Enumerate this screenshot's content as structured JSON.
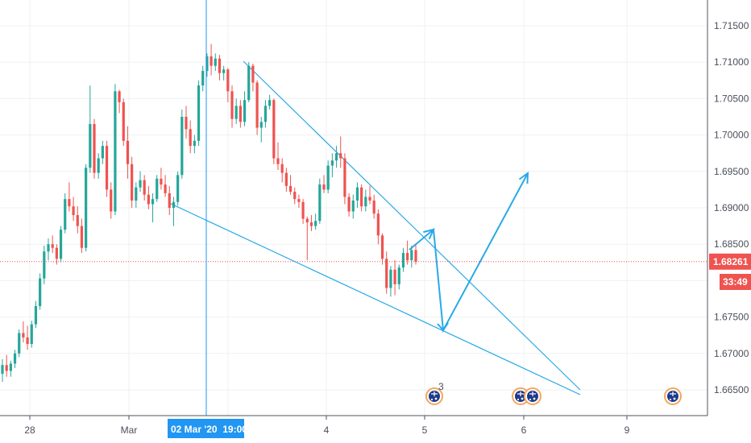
{
  "chart_data": {
    "type": "candlestick",
    "grid": true,
    "y_axis": {
      "position": "right",
      "ticks": [
        "1.71500",
        "1.71000",
        "1.70500",
        "1.70000",
        "1.69500",
        "1.69000",
        "1.68500",
        "1.67500",
        "1.67000",
        "1.66500"
      ],
      "ylim": [
        1.662,
        1.718
      ]
    },
    "x_axis": {
      "ticks": [
        "28",
        "Mar",
        "4",
        "5",
        "6",
        "9"
      ]
    },
    "current_price": {
      "value": 1.68261,
      "label": "1.68261",
      "countdown": "33:49",
      "color": "#ef5350"
    },
    "crosshair": {
      "label": "02 Mar '20  19:00",
      "color": "#2196f3"
    },
    "colors": {
      "up": "#26a69a",
      "down": "#ef5350",
      "drawing": "#29a9e8",
      "grid": "#eef0f3"
    },
    "candles": [
      [
        1.6672,
        1.6692,
        1.6661,
        1.6684
      ],
      [
        1.6684,
        1.6698,
        1.6668,
        1.6676
      ],
      [
        1.6676,
        1.669,
        1.6668,
        1.6686
      ],
      [
        1.6686,
        1.6705,
        1.668,
        1.67
      ],
      [
        1.67,
        1.6733,
        1.6695,
        1.6728
      ],
      [
        1.6728,
        1.6744,
        1.6715,
        1.6722
      ],
      [
        1.6722,
        1.6738,
        1.6705,
        1.6713
      ],
      [
        1.6713,
        1.6745,
        1.6708,
        1.674
      ],
      [
        1.674,
        1.6772,
        1.6735,
        1.6765
      ],
      [
        1.6765,
        1.681,
        1.676,
        1.6803
      ],
      [
        1.6803,
        1.6848,
        1.6795,
        1.684
      ],
      [
        1.684,
        1.6858,
        1.6828,
        1.685
      ],
      [
        1.685,
        1.6862,
        1.6838,
        1.6845
      ],
      [
        1.6845,
        1.685,
        1.6822,
        1.683
      ],
      [
        1.683,
        1.6875,
        1.6825,
        1.687
      ],
      [
        1.687,
        1.692,
        1.6865,
        1.6912
      ],
      [
        1.6912,
        1.6935,
        1.6895,
        1.6902
      ],
      [
        1.6902,
        1.6915,
        1.6882,
        1.689
      ],
      [
        1.689,
        1.6902,
        1.6865,
        1.6875
      ],
      [
        1.6875,
        1.6885,
        1.6838,
        1.6845
      ],
      [
        1.6845,
        1.696,
        1.684,
        1.6955
      ],
      [
        1.6955,
        1.7068,
        1.6948,
        1.7015
      ],
      [
        1.7015,
        1.7022,
        1.694,
        1.6948
      ],
      [
        1.6948,
        1.6975,
        1.694,
        1.6968
      ],
      [
        1.6968,
        1.6992,
        1.696,
        1.6985
      ],
      [
        1.6985,
        1.6992,
        1.6915,
        1.6925
      ],
      [
        1.6925,
        1.6935,
        1.6885,
        1.6895
      ],
      [
        1.6895,
        1.707,
        1.689,
        1.706
      ],
      [
        1.706,
        1.7062,
        1.703,
        1.7045
      ],
      [
        1.7045,
        1.705,
        1.6985,
        1.6992
      ],
      [
        1.6992,
        1.7012,
        1.694,
        1.696
      ],
      [
        1.696,
        1.697,
        1.69,
        1.691
      ],
      [
        1.691,
        1.6935,
        1.69,
        1.6928
      ],
      [
        1.6928,
        1.695,
        1.6922,
        1.6938
      ],
      [
        1.6938,
        1.6945,
        1.691,
        1.6918
      ],
      [
        1.6918,
        1.693,
        1.6898,
        1.6905
      ],
      [
        1.6905,
        1.692,
        1.688,
        1.6912
      ],
      [
        1.6912,
        1.6945,
        1.6908,
        1.694
      ],
      [
        1.694,
        1.6955,
        1.6925,
        1.6932
      ],
      [
        1.6932,
        1.6945,
        1.6915,
        1.692
      ],
      [
        1.692,
        1.693,
        1.689,
        1.69
      ],
      [
        1.69,
        1.6915,
        1.6875,
        1.6908
      ],
      [
        1.6908,
        1.695,
        1.6903,
        1.6945
      ],
      [
        1.6945,
        1.7035,
        1.694,
        1.7025
      ],
      [
        1.7025,
        1.704,
        1.6995,
        1.7008
      ],
      [
        1.7008,
        1.702,
        1.6975,
        1.6985
      ],
      [
        1.6985,
        1.7,
        1.6975,
        1.6992
      ],
      [
        1.6992,
        1.7075,
        1.6985,
        1.7068
      ],
      [
        1.7068,
        1.7095,
        1.706,
        1.7088
      ],
      [
        1.7088,
        1.7112,
        1.708,
        1.7108
      ],
      [
        1.7108,
        1.7125,
        1.7082,
        1.7095
      ],
      [
        1.7095,
        1.7112,
        1.7088,
        1.7105
      ],
      [
        1.7105,
        1.711,
        1.7075,
        1.7085
      ],
      [
        1.7085,
        1.7095,
        1.7075,
        1.709
      ],
      [
        1.709,
        1.7092,
        1.7045,
        1.706
      ],
      [
        1.706,
        1.7068,
        1.701,
        1.7022
      ],
      [
        1.7022,
        1.705,
        1.7015,
        1.704
      ],
      [
        1.704,
        1.7048,
        1.701,
        1.7018
      ],
      [
        1.7018,
        1.706,
        1.7012,
        1.7048
      ],
      [
        1.7048,
        1.71,
        1.7045,
        1.7095
      ],
      [
        1.7095,
        1.7098,
        1.706,
        1.7072
      ],
      [
        1.7072,
        1.7075,
        1.7,
        1.701
      ],
      [
        1.701,
        1.7025,
        1.699,
        1.7018
      ],
      [
        1.7018,
        1.7048,
        1.701,
        1.704
      ],
      [
        1.704,
        1.7055,
        1.7035,
        1.7048
      ],
      [
        1.7048,
        1.705,
        1.696,
        1.6968
      ],
      [
        1.6968,
        1.699,
        1.6952,
        1.696
      ],
      [
        1.696,
        1.6968,
        1.6935,
        1.6948
      ],
      [
        1.6948,
        1.6955,
        1.6922,
        1.693
      ],
      [
        1.693,
        1.6945,
        1.6918,
        1.6922
      ],
      [
        1.6922,
        1.6928,
        1.6905,
        1.6912
      ],
      [
        1.6912,
        1.6918,
        1.69,
        1.6908
      ],
      [
        1.6908,
        1.6912,
        1.6878,
        1.6885
      ],
      [
        1.6885,
        1.6888,
        1.6828,
        1.688
      ],
      [
        1.688,
        1.689,
        1.6868,
        1.6875
      ],
      [
        1.6875,
        1.6892,
        1.687,
        1.6882
      ],
      [
        1.6882,
        1.694,
        1.6878,
        1.6932
      ],
      [
        1.6932,
        1.6945,
        1.692,
        1.6925
      ],
      [
        1.6925,
        1.6965,
        1.692,
        1.6958
      ],
      [
        1.6958,
        1.6975,
        1.6942,
        1.6965
      ],
      [
        1.6965,
        1.6985,
        1.6955,
        1.6975
      ],
      [
        1.6975,
        1.6998,
        1.6955,
        1.6968
      ],
      [
        1.6968,
        1.6975,
        1.6905,
        1.6915
      ],
      [
        1.6915,
        1.692,
        1.6888,
        1.6895
      ],
      [
        1.6895,
        1.6918,
        1.6885,
        1.691
      ],
      [
        1.691,
        1.6935,
        1.69,
        1.6928
      ],
      [
        1.6928,
        1.6932,
        1.6895,
        1.6902
      ],
      [
        1.6902,
        1.6925,
        1.6895,
        1.6915
      ],
      [
        1.6915,
        1.693,
        1.6905,
        1.691
      ],
      [
        1.691,
        1.6918,
        1.6885,
        1.6892
      ],
      [
        1.6892,
        1.6898,
        1.685,
        1.6862
      ],
      [
        1.6862,
        1.6865,
        1.6822,
        1.683
      ],
      [
        1.683,
        1.684,
        1.6782,
        1.679
      ],
      [
        1.679,
        1.682,
        1.6778,
        1.6815
      ],
      [
        1.6815,
        1.6828,
        1.678,
        1.6795
      ],
      [
        1.6795,
        1.6822,
        1.6788,
        1.6818
      ],
      [
        1.6818,
        1.6845,
        1.6812,
        1.6838
      ],
      [
        1.6838,
        1.6855,
        1.6822,
        1.6828
      ],
      [
        1.6828,
        1.6848,
        1.6818,
        1.6842
      ],
      [
        1.6842,
        1.685,
        1.6822,
        1.6826
      ]
    ],
    "drawings": [
      {
        "type": "trendline",
        "points": [
          [
            302,
            76
          ],
          [
            720,
            484
          ]
        ]
      },
      {
        "type": "trendline",
        "points": [
          [
            210,
            252
          ],
          [
            720,
            490
          ]
        ]
      },
      {
        "type": "arrow",
        "points": [
          [
            508,
            310
          ],
          [
            538,
            285
          ],
          [
            550,
            410
          ],
          [
            655,
            215
          ]
        ]
      }
    ],
    "event_markers": [
      {
        "x": 539,
        "badge": "3"
      },
      {
        "x": 646,
        "badge": ""
      },
      {
        "x": 661,
        "badge": ""
      },
      {
        "x": 835,
        "badge": ""
      }
    ]
  }
}
